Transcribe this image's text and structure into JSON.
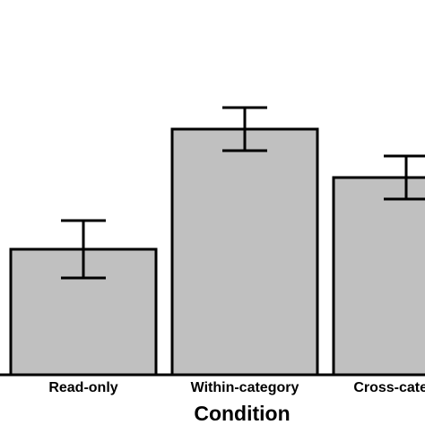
{
  "chart_data": {
    "type": "bar",
    "x_label": "Condition",
    "categories": [
      "Read-only",
      "Within-category",
      "Cross-category"
    ],
    "values": [
      140,
      274,
      220
    ],
    "errors": [
      32,
      24,
      24
    ],
    "color": "#c0c0c0"
  }
}
